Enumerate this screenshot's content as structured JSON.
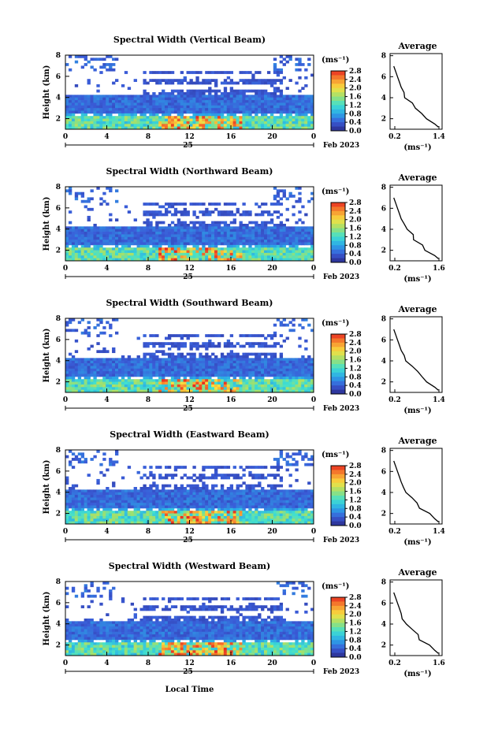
{
  "figure": {
    "panels": [
      {
        "title": "Spectral Width (Vertical Beam)",
        "avg_xticks": [
          "0.2",
          "1.4"
        ],
        "date_label": "Feb 2023"
      },
      {
        "title": "Spectral Width (Northward Beam)",
        "avg_xticks": [
          "0.2",
          "1.6"
        ],
        "date_label": "Feb 2023"
      },
      {
        "title": "Spectral Width (Southward Beam)",
        "avg_xticks": [
          "0.2",
          "1.4"
        ],
        "date_label": "Feb 2023"
      },
      {
        "title": "Spectral Width (Eastward Beam)",
        "avg_xticks": [
          "0.2",
          "1.4"
        ],
        "date_label": "Feb 2023"
      },
      {
        "title": "Spectral Width (Westward Beam)",
        "avg_xticks": [
          "0.2",
          "1.6"
        ],
        "date_label": "Feb 2023"
      }
    ],
    "ylabel": "Height (km)",
    "yticks": [
      "2",
      "4",
      "6",
      "8"
    ],
    "xticks": [
      "0",
      "4",
      "8",
      "12",
      "16",
      "20",
      "0"
    ],
    "day_label": "25",
    "colorbar_unit": "(ms⁻¹)",
    "colorbar_ticks": [
      "0.0",
      "0.4",
      "0.8",
      "1.2",
      "1.6",
      "2.0",
      "2.4",
      "2.8"
    ],
    "avg_title": "Average",
    "avg_yticks": [
      "2",
      "4",
      "6",
      "8"
    ],
    "avg_xlabel": "(ms⁻¹)",
    "xlabel_bottom": "Local Time"
  },
  "chart_data": {
    "type": "heatmap",
    "x_range_hours": [
      0,
      24
    ],
    "y_range_km": [
      1,
      8
    ],
    "colorbar_range": [
      0.0,
      2.8
    ],
    "colormap": [
      "#2a2a8a",
      "#3a5cd8",
      "#2aa8e8",
      "#40e0d0",
      "#9de070",
      "#f8e040",
      "#f89030",
      "#e82a20"
    ],
    "average_profile_height_km": [
      1.2,
      1.5,
      2,
      2.5,
      3,
      3.5,
      4,
      4.5,
      5,
      5.5,
      6,
      6.5,
      7
    ],
    "average_profile_width_ms": [
      1.4,
      1.3,
      1.1,
      0.95,
      0.8,
      0.65,
      0.5,
      0.45,
      0.4,
      0.35,
      0.3,
      0.25,
      0.2
    ]
  }
}
